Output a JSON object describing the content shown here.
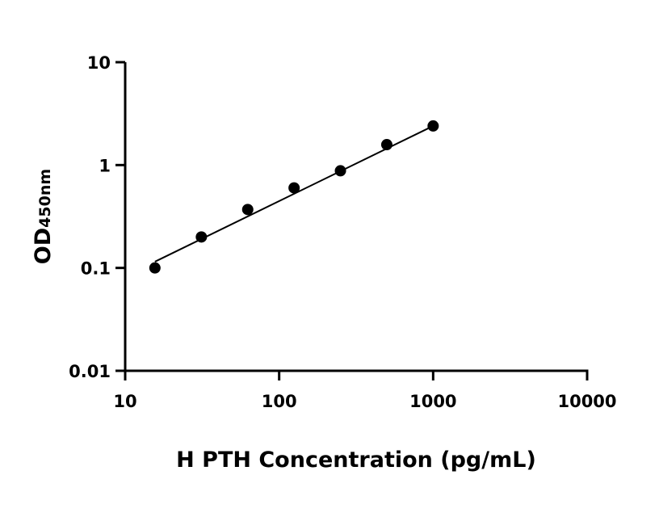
{
  "chart_data": {
    "type": "scatter",
    "x_scale": "log",
    "y_scale": "log",
    "xlim": [
      10,
      10000
    ],
    "ylim": [
      0.01,
      10
    ],
    "x_ticks": [
      "10",
      "100",
      "1000",
      "10000"
    ],
    "y_ticks": [
      "0.01",
      "0.1",
      "1",
      "10"
    ],
    "xlabel": "H PTH Concentration (pg/mL)",
    "ylabel_main": "OD",
    "ylabel_sub": "450nm",
    "grid": false,
    "legend": "none",
    "series": [
      {
        "points": [
          {
            "x": 15.6,
            "y": 0.1
          },
          {
            "x": 31.25,
            "y": 0.2
          },
          {
            "x": 62.5,
            "y": 0.37
          },
          {
            "x": 125,
            "y": 0.6
          },
          {
            "x": 250,
            "y": 0.88
          },
          {
            "x": 500,
            "y": 1.58
          },
          {
            "x": 1000,
            "y": 2.4
          }
        ],
        "fit_line": {
          "x": [
            15.6,
            1000
          ],
          "y": [
            0.115,
            2.4
          ]
        }
      }
    ],
    "colors": {
      "marker": "#000000",
      "line": "#000000",
      "axis": "#000000"
    }
  }
}
